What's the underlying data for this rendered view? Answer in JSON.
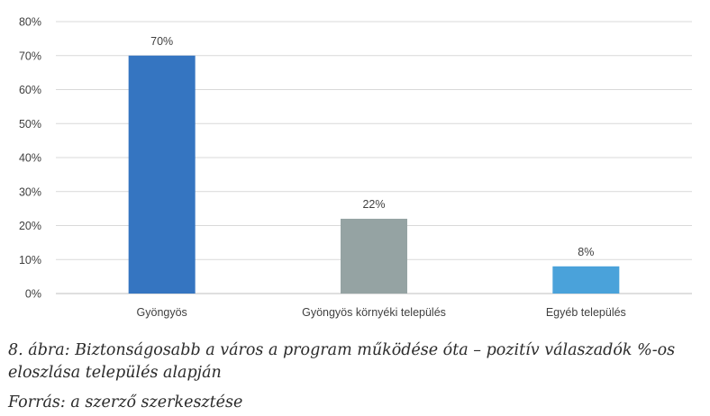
{
  "chart_data": {
    "type": "bar",
    "categories": [
      "Gyöngyös",
      "Gyöngyös környéki település",
      "Egyéb település"
    ],
    "values": [
      70,
      22,
      8
    ],
    "value_labels": [
      "70%",
      "22%",
      "8%"
    ],
    "ylim": [
      0,
      80
    ],
    "yticks": [
      "0%",
      "10%",
      "20%",
      "30%",
      "40%",
      "50%",
      "60%",
      "70%",
      "80%"
    ],
    "grid": true,
    "colors": [
      "#3575c1",
      "#95a3a3",
      "#4aa2da"
    ]
  },
  "caption": {
    "main": "8. ábra: Biztonságosabb a város a program működése óta – pozitív válaszadók %-os eloszlása település alapján",
    "source": "Forrás: a szerző szerkesztése"
  }
}
